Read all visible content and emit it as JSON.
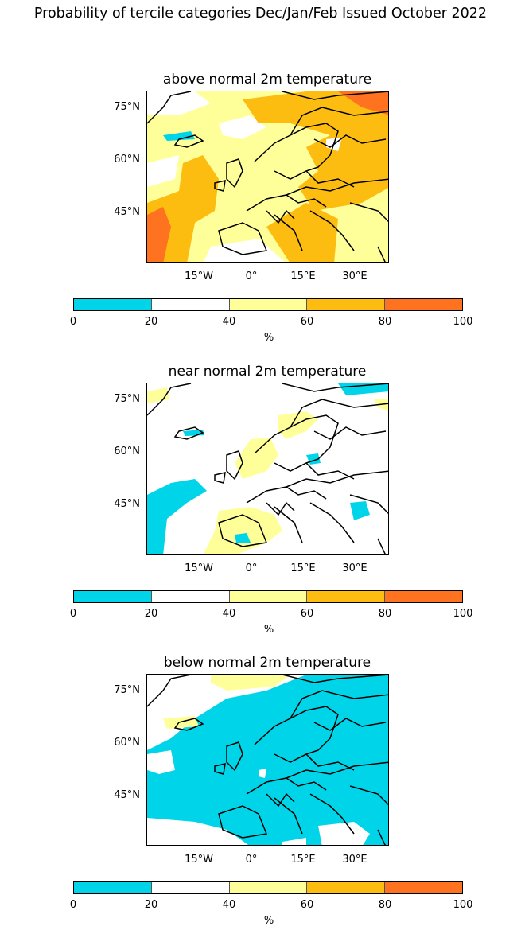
{
  "suptitle": "Probability of tercile categories Dec/Jan/Feb Issued October 2022",
  "colors": {
    "c0_20": "#00d4e8",
    "c20_40": "#ffffff",
    "c40_60": "#ffff99",
    "c60_80": "#fdbd10",
    "c80_100": "#ff7320",
    "coast": "#000000"
  },
  "panels": [
    {
      "title": "above normal 2m temperature",
      "lat_labels": [
        "75°N",
        "60°N",
        "45°N"
      ],
      "lon_labels": [
        "15°W",
        "0°",
        "15°E",
        "30°E"
      ],
      "dominant_category": "40-80"
    },
    {
      "title": "near normal 2m temperature",
      "lat_labels": [
        "75°N",
        "60°N",
        "45°N"
      ],
      "lon_labels": [
        "15°W",
        "0°",
        "15°E",
        "30°E"
      ],
      "dominant_category": "20-40"
    },
    {
      "title": "below normal 2m temperature",
      "lat_labels": [
        "75°N",
        "60°N",
        "45°N"
      ],
      "lon_labels": [
        "15°W",
        "0°",
        "15°E",
        "30°E"
      ],
      "dominant_category": "0-20"
    }
  ],
  "colorbar": {
    "ticks": [
      "0",
      "20",
      "40",
      "60",
      "80",
      "100"
    ],
    "unit": "%"
  }
}
